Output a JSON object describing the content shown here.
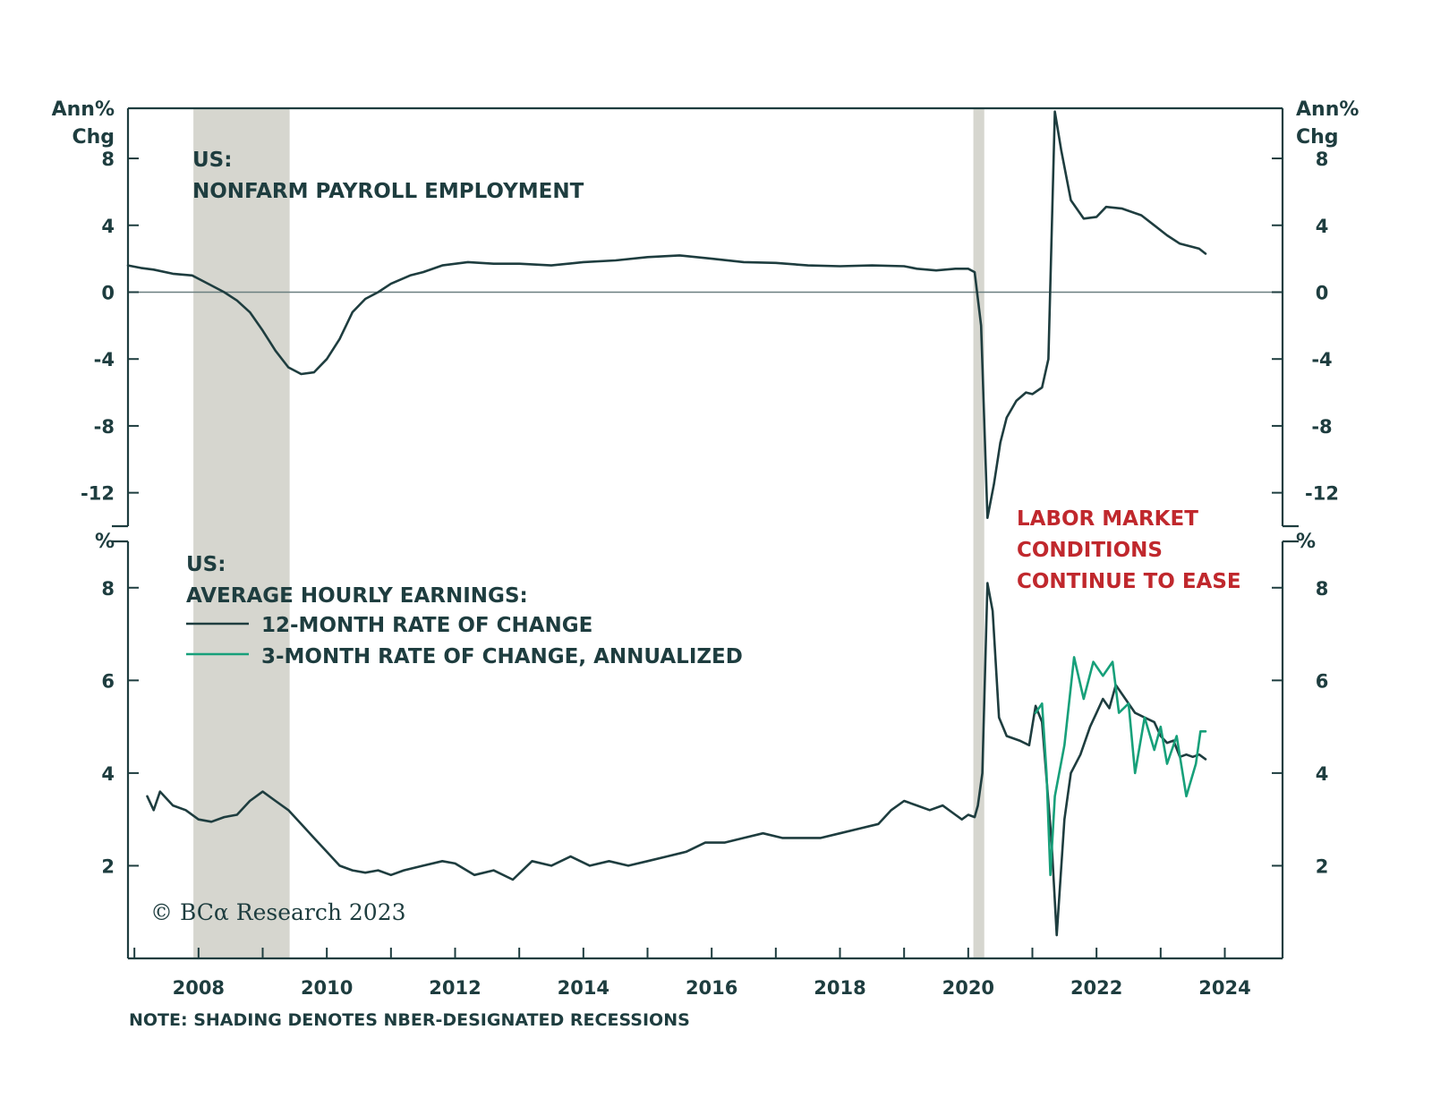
{
  "colors": {
    "axis": "#1e3d3f",
    "line_dark": "#1e3d3f",
    "line_green": "#17a07a",
    "recession": "#d6d6cf",
    "annotation": "#c0282d",
    "zero_line": "#6b7f80"
  },
  "chart_data": [
    {
      "type": "line",
      "id": "payrolls",
      "title_lines": [
        "US:",
        "NONFARM PAYROLL EMPLOYMENT"
      ],
      "unit_label": [
        "Ann%",
        "Chg"
      ],
      "xlim": [
        2006.9,
        2024.9
      ],
      "ylim": [
        -14,
        11
      ],
      "yticks": [
        {
          "value": 8,
          "label": "8"
        },
        {
          "value": 4,
          "label": "4"
        },
        {
          "value": 0,
          "label": "0"
        },
        {
          "value": -4,
          "label": "-4"
        },
        {
          "value": -8,
          "label": "-8"
        },
        {
          "value": -12,
          "label": "-12"
        }
      ],
      "zero_line": true,
      "series": [
        {
          "color_key": "line_dark",
          "points": [
            [
              2006.9,
              1.6
            ],
            [
              2007.1,
              1.45
            ],
            [
              2007.3,
              1.35
            ],
            [
              2007.6,
              1.1
            ],
            [
              2007.9,
              1.0
            ],
            [
              2008.0,
              0.8
            ],
            [
              2008.2,
              0.4
            ],
            [
              2008.4,
              0.0
            ],
            [
              2008.6,
              -0.5
            ],
            [
              2008.8,
              -1.2
            ],
            [
              2009.0,
              -2.3
            ],
            [
              2009.2,
              -3.5
            ],
            [
              2009.4,
              -4.5
            ],
            [
              2009.6,
              -4.9
            ],
            [
              2009.8,
              -4.8
            ],
            [
              2010.0,
              -4.0
            ],
            [
              2010.2,
              -2.8
            ],
            [
              2010.4,
              -1.2
            ],
            [
              2010.6,
              -0.4
            ],
            [
              2010.8,
              0.0
            ],
            [
              2011.0,
              0.5
            ],
            [
              2011.3,
              1.0
            ],
            [
              2011.5,
              1.2
            ],
            [
              2011.8,
              1.6
            ],
            [
              2012.2,
              1.8
            ],
            [
              2012.6,
              1.7
            ],
            [
              2013.0,
              1.7
            ],
            [
              2013.5,
              1.6
            ],
            [
              2014.0,
              1.8
            ],
            [
              2014.5,
              1.9
            ],
            [
              2015.0,
              2.1
            ],
            [
              2015.5,
              2.2
            ],
            [
              2016.0,
              2.0
            ],
            [
              2016.5,
              1.8
            ],
            [
              2017.0,
              1.75
            ],
            [
              2017.5,
              1.6
            ],
            [
              2018.0,
              1.55
            ],
            [
              2018.5,
              1.6
            ],
            [
              2019.0,
              1.55
            ],
            [
              2019.2,
              1.4
            ],
            [
              2019.5,
              1.3
            ],
            [
              2019.8,
              1.4
            ],
            [
              2020.0,
              1.4
            ],
            [
              2020.1,
              1.2
            ],
            [
              2020.2,
              -2.0
            ],
            [
              2020.3,
              -13.5
            ],
            [
              2020.4,
              -11.5
            ],
            [
              2020.5,
              -9.0
            ],
            [
              2020.6,
              -7.5
            ],
            [
              2020.75,
              -6.5
            ],
            [
              2020.9,
              -6.0
            ],
            [
              2021.0,
              -6.1
            ],
            [
              2021.15,
              -5.7
            ],
            [
              2021.25,
              -4.0
            ],
            [
              2021.35,
              10.8
            ],
            [
              2021.45,
              8.5
            ],
            [
              2021.6,
              5.5
            ],
            [
              2021.8,
              4.4
            ],
            [
              2022.0,
              4.5
            ],
            [
              2022.15,
              5.1
            ],
            [
              2022.4,
              5.0
            ],
            [
              2022.7,
              4.6
            ],
            [
              2022.9,
              4.0
            ],
            [
              2023.1,
              3.4
            ],
            [
              2023.3,
              2.9
            ],
            [
              2023.5,
              2.7
            ],
            [
              2023.6,
              2.6
            ],
            [
              2023.7,
              2.3
            ]
          ]
        }
      ]
    },
    {
      "type": "line",
      "id": "earnings",
      "title_lines": [
        "US:",
        "AVERAGE HOURLY EARNINGS:"
      ],
      "unit_label": [
        "%"
      ],
      "xlim": [
        2006.9,
        2024.9
      ],
      "ylim": [
        0,
        9.0
      ],
      "yticks": [
        {
          "value": 8,
          "label": "8"
        },
        {
          "value": 6,
          "label": "6"
        },
        {
          "value": 4,
          "label": "4"
        },
        {
          "value": 2,
          "label": "2"
        }
      ],
      "series": [
        {
          "name": "12-MONTH RATE OF CHANGE",
          "color_key": "line_dark",
          "points": [
            [
              2007.2,
              3.5
            ],
            [
              2007.3,
              3.2
            ],
            [
              2007.4,
              3.6
            ],
            [
              2007.6,
              3.3
            ],
            [
              2007.8,
              3.2
            ],
            [
              2008.0,
              3.0
            ],
            [
              2008.2,
              2.95
            ],
            [
              2008.4,
              3.05
            ],
            [
              2008.6,
              3.1
            ],
            [
              2008.8,
              3.4
            ],
            [
              2009.0,
              3.6
            ],
            [
              2009.2,
              3.4
            ],
            [
              2009.4,
              3.2
            ],
            [
              2009.6,
              2.9
            ],
            [
              2009.8,
              2.6
            ],
            [
              2010.0,
              2.3
            ],
            [
              2010.2,
              2.0
            ],
            [
              2010.4,
              1.9
            ],
            [
              2010.6,
              1.85
            ],
            [
              2010.8,
              1.9
            ],
            [
              2011.0,
              1.8
            ],
            [
              2011.2,
              1.9
            ],
            [
              2011.5,
              2.0
            ],
            [
              2011.8,
              2.1
            ],
            [
              2012.0,
              2.05
            ],
            [
              2012.3,
              1.8
            ],
            [
              2012.6,
              1.9
            ],
            [
              2012.9,
              1.7
            ],
            [
              2013.2,
              2.1
            ],
            [
              2013.5,
              2.0
            ],
            [
              2013.8,
              2.2
            ],
            [
              2014.1,
              2.0
            ],
            [
              2014.4,
              2.1
            ],
            [
              2014.7,
              2.0
            ],
            [
              2015.0,
              2.1
            ],
            [
              2015.3,
              2.2
            ],
            [
              2015.6,
              2.3
            ],
            [
              2015.9,
              2.5
            ],
            [
              2016.2,
              2.5
            ],
            [
              2016.5,
              2.6
            ],
            [
              2016.8,
              2.7
            ],
            [
              2017.1,
              2.6
            ],
            [
              2017.4,
              2.6
            ],
            [
              2017.7,
              2.6
            ],
            [
              2018.0,
              2.7
            ],
            [
              2018.3,
              2.8
            ],
            [
              2018.6,
              2.9
            ],
            [
              2018.8,
              3.2
            ],
            [
              2019.0,
              3.4
            ],
            [
              2019.2,
              3.3
            ],
            [
              2019.4,
              3.2
            ],
            [
              2019.6,
              3.3
            ],
            [
              2019.8,
              3.1
            ],
            [
              2019.9,
              3.0
            ],
            [
              2020.0,
              3.1
            ],
            [
              2020.1,
              3.05
            ],
            [
              2020.15,
              3.3
            ],
            [
              2020.22,
              4.0
            ],
            [
              2020.3,
              8.1
            ],
            [
              2020.38,
              7.5
            ],
            [
              2020.48,
              5.2
            ],
            [
              2020.6,
              4.8
            ],
            [
              2020.8,
              4.7
            ],
            [
              2020.95,
              4.6
            ],
            [
              2021.05,
              5.45
            ],
            [
              2021.15,
              5.1
            ],
            [
              2021.3,
              2.5
            ],
            [
              2021.38,
              0.5
            ],
            [
              2021.5,
              3.0
            ],
            [
              2021.6,
              4.0
            ],
            [
              2021.75,
              4.4
            ],
            [
              2021.9,
              5.0
            ],
            [
              2022.0,
              5.3
            ],
            [
              2022.1,
              5.6
            ],
            [
              2022.2,
              5.4
            ],
            [
              2022.3,
              5.9
            ],
            [
              2022.45,
              5.6
            ],
            [
              2022.6,
              5.3
            ],
            [
              2022.75,
              5.2
            ],
            [
              2022.9,
              5.1
            ],
            [
              2023.0,
              4.8
            ],
            [
              2023.1,
              4.65
            ],
            [
              2023.2,
              4.7
            ],
            [
              2023.3,
              4.35
            ],
            [
              2023.4,
              4.4
            ],
            [
              2023.5,
              4.35
            ],
            [
              2023.6,
              4.4
            ],
            [
              2023.7,
              4.3
            ]
          ]
        },
        {
          "name": "3-MONTH RATE OF CHANGE, ANNUALIZED",
          "color_key": "line_green",
          "points": [
            [
              2021.05,
              5.3
            ],
            [
              2021.15,
              5.5
            ],
            [
              2021.22,
              4.0
            ],
            [
              2021.28,
              1.8
            ],
            [
              2021.35,
              3.5
            ],
            [
              2021.5,
              4.6
            ],
            [
              2021.65,
              6.5
            ],
            [
              2021.8,
              5.6
            ],
            [
              2021.95,
              6.4
            ],
            [
              2022.1,
              6.1
            ],
            [
              2022.25,
              6.4
            ],
            [
              2022.35,
              5.3
            ],
            [
              2022.5,
              5.5
            ],
            [
              2022.6,
              4.0
            ],
            [
              2022.75,
              5.2
            ],
            [
              2022.9,
              4.5
            ],
            [
              2023.0,
              5.0
            ],
            [
              2023.1,
              4.2
            ],
            [
              2023.25,
              4.8
            ],
            [
              2023.4,
              3.5
            ],
            [
              2023.55,
              4.2
            ],
            [
              2023.62,
              4.9
            ],
            [
              2023.7,
              4.9
            ]
          ]
        }
      ]
    }
  ],
  "x_axis": {
    "ticks": [
      2007,
      2008,
      2009,
      2010,
      2011,
      2012,
      2013,
      2014,
      2015,
      2016,
      2017,
      2018,
      2019,
      2020,
      2021,
      2022,
      2023,
      2024
    ],
    "labels": [
      {
        "value": 2008,
        "label": "2008"
      },
      {
        "value": 2010,
        "label": "2010"
      },
      {
        "value": 2012,
        "label": "2012"
      },
      {
        "value": 2014,
        "label": "2014"
      },
      {
        "value": 2016,
        "label": "2016"
      },
      {
        "value": 2018,
        "label": "2018"
      },
      {
        "value": 2020,
        "label": "2020"
      },
      {
        "value": 2022,
        "label": "2022"
      },
      {
        "value": 2024,
        "label": "2024"
      }
    ]
  },
  "recessions": [
    {
      "start": 2007.92,
      "end": 2009.42
    },
    {
      "start": 2020.08,
      "end": 2020.25
    }
  ],
  "annotation": [
    "LABOR MARKET",
    "CONDITIONS",
    "CONTINUE TO EASE"
  ],
  "copyright": "© BCα Research 2023",
  "note": "NOTE: SHADING DENOTES NBER-DESIGNATED RECESSIONS"
}
